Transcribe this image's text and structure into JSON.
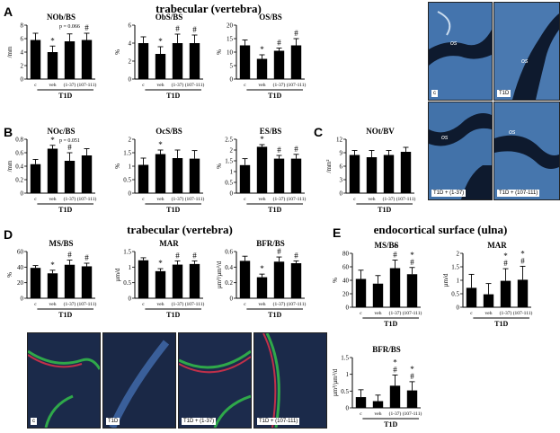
{
  "section_titles": {
    "trabecular_top": "trabecular (vertebra)",
    "trabecular_mid": "trabecular (vertebra)",
    "ulna": "endocortical surface (ulna)"
  },
  "panel_letters": [
    "A",
    "B",
    "C",
    "D",
    "E"
  ],
  "group_label": "T1D",
  "categories": [
    "c",
    "veh",
    "(1-37)",
    "(107-111)"
  ],
  "colors": {
    "bar": "#000000",
    "blue_stain": "#3d6fa8",
    "trabecula": "#0e1a2e"
  },
  "micro_top_labels": [
    "c",
    "T1D",
    "T1D + (1-37)",
    "T1D + (107-111)"
  ],
  "micro_top_tissue_label": "os",
  "micro_bottom_labels": [
    "c",
    "T1D",
    "T1D + (1-37)",
    "T1D + (107-111)"
  ],
  "chart_data": [
    {
      "id": "A1",
      "type": "bar",
      "title": "NOb/BS",
      "ylabel": "/mm",
      "ylim": [
        0,
        8
      ],
      "yticks": [
        0,
        2,
        4,
        6,
        8
      ],
      "values": [
        5.8,
        4.0,
        5.6,
        5.8
      ],
      "errors": [
        1.0,
        0.9,
        1.1,
        1.0
      ],
      "marks": [
        "",
        "*",
        "",
        "#"
      ],
      "pvalue": "p = 0.066"
    },
    {
      "id": "A2",
      "type": "bar",
      "title": "ObS/BS",
      "ylabel": "%",
      "ylim": [
        0,
        6
      ],
      "yticks": [
        0,
        2,
        4,
        6
      ],
      "values": [
        4.0,
        2.8,
        4.0,
        4.0
      ],
      "errors": [
        0.7,
        0.8,
        1.0,
        0.9
      ],
      "marks": [
        "",
        "*",
        "#",
        "#"
      ]
    },
    {
      "id": "A3",
      "type": "bar",
      "title": "OS/BS",
      "ylabel": "%",
      "ylim": [
        0,
        20
      ],
      "yticks": [
        0,
        5,
        10,
        15,
        20
      ],
      "values": [
        12.5,
        7.5,
        10.5,
        12.5
      ],
      "errors": [
        2.0,
        1.5,
        1.0,
        2.5
      ],
      "marks": [
        "",
        "*",
        "#",
        "#"
      ]
    },
    {
      "id": "B1",
      "type": "bar",
      "title": "NOc/BS",
      "ylabel": "/mm",
      "ylim": [
        0,
        0.8
      ],
      "yticks": [
        0,
        0.2,
        0.4,
        0.6,
        0.8
      ],
      "values": [
        0.43,
        0.66,
        0.48,
        0.56
      ],
      "errors": [
        0.07,
        0.05,
        0.12,
        0.1
      ],
      "marks": [
        "",
        "*",
        "#",
        ""
      ],
      "pvalue": "p = 0.051"
    },
    {
      "id": "B2",
      "type": "bar",
      "title": "OcS/BS",
      "ylabel": "%",
      "ylim": [
        0,
        2.0
      ],
      "yticks": [
        0,
        0.5,
        1.0,
        1.5,
        2.0
      ],
      "values": [
        1.05,
        1.45,
        1.3,
        1.28
      ],
      "errors": [
        0.25,
        0.15,
        0.3,
        0.3
      ],
      "marks": [
        "",
        "*",
        "",
        ""
      ]
    },
    {
      "id": "B3",
      "type": "bar",
      "title": "ES/BS",
      "ylabel": "%",
      "ylim": [
        0,
        2.5
      ],
      "yticks": [
        0,
        0.5,
        1.0,
        1.5,
        2.0,
        2.5
      ],
      "values": [
        1.3,
        2.15,
        1.6,
        1.6
      ],
      "errors": [
        0.3,
        0.1,
        0.15,
        0.2
      ],
      "marks": [
        "",
        "*",
        "#",
        "#"
      ]
    },
    {
      "id": "C",
      "type": "bar",
      "title": "NOt/BV",
      "ylabel": "/mm²",
      "ylim": [
        0,
        12
      ],
      "yticks": [
        0,
        3,
        6,
        9,
        12
      ],
      "values": [
        8.5,
        8.0,
        8.5,
        9.2
      ],
      "errors": [
        1.0,
        1.5,
        1.0,
        1.0
      ],
      "marks": [
        "",
        "",
        "",
        ""
      ]
    },
    {
      "id": "D1",
      "type": "bar",
      "title": "MS/BS",
      "ylabel": "%",
      "ylim": [
        0,
        60
      ],
      "yticks": [
        0,
        20,
        40,
        60
      ],
      "values": [
        39,
        32,
        43,
        41
      ],
      "errors": [
        3,
        4,
        6,
        4
      ],
      "marks": [
        "",
        "*",
        "#",
        "#"
      ]
    },
    {
      "id": "D2",
      "type": "bar",
      "title": "MAR",
      "ylabel": "µm/d",
      "ylim": [
        0,
        1.5
      ],
      "yticks": [
        0,
        0.5,
        1.0,
        1.5
      ],
      "values": [
        1.22,
        0.87,
        1.08,
        1.1
      ],
      "errors": [
        0.08,
        0.08,
        0.12,
        0.1
      ],
      "marks": [
        "",
        "*",
        "#",
        "#"
      ]
    },
    {
      "id": "D3",
      "type": "bar",
      "title": "BFR/BS",
      "ylabel": "µm³/µm²/d",
      "ylim": [
        0,
        0.6
      ],
      "yticks": [
        0,
        0.2,
        0.4,
        0.6
      ],
      "values": [
        0.48,
        0.27,
        0.47,
        0.45
      ],
      "errors": [
        0.06,
        0.04,
        0.06,
        0.03
      ],
      "marks": [
        "",
        "*",
        "#",
        "#"
      ]
    },
    {
      "id": "E1",
      "type": "bar",
      "title": "MS/BS",
      "ylabel": "%",
      "ylim": [
        0,
        80
      ],
      "yticks": [
        0,
        20,
        40,
        60,
        80
      ],
      "values": [
        42,
        35,
        58,
        49
      ],
      "errors": [
        13,
        12,
        12,
        10
      ],
      "marks": [
        "",
        "",
        "*#",
        "*#"
      ]
    },
    {
      "id": "E2",
      "type": "bar",
      "title": "MAR",
      "ylabel": "µm/d",
      "ylim": [
        0,
        2.0
      ],
      "yticks": [
        0,
        0.5,
        1.0,
        1.5,
        2.0
      ],
      "values": [
        0.72,
        0.48,
        0.98,
        1.02
      ],
      "errors": [
        0.5,
        0.4,
        0.45,
        0.5
      ],
      "marks": [
        "",
        "",
        "*#",
        "*#"
      ]
    },
    {
      "id": "E3",
      "type": "bar",
      "title": "BFR/BS",
      "ylabel": "µm³/µm²/d",
      "ylim": [
        0,
        1.5
      ],
      "yticks": [
        0,
        0.5,
        1.0,
        1.5
      ],
      "values": [
        0.32,
        0.2,
        0.66,
        0.52
      ],
      "errors": [
        0.22,
        0.18,
        0.32,
        0.26
      ],
      "marks": [
        "",
        "",
        "*#",
        "*#"
      ]
    }
  ]
}
